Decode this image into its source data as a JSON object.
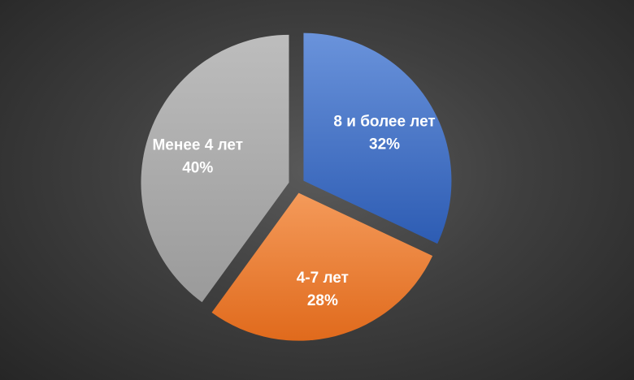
{
  "chart_data": {
    "type": "pie",
    "title": "",
    "slices": [
      {
        "label": "8 и более лет",
        "value": 32,
        "value_label": "32%",
        "color": "#4472c4"
      },
      {
        "label": "4-7 лет",
        "value": 28,
        "value_label": "28%",
        "color": "#ed7d31"
      },
      {
        "label": "Менее 4 лет",
        "value": 40,
        "value_label": "40%",
        "color": "#a5a5a5"
      }
    ],
    "start_angle_deg": 0,
    "direction": "clockwise",
    "exploded": true,
    "legend": "none",
    "data_labels": "inside"
  }
}
